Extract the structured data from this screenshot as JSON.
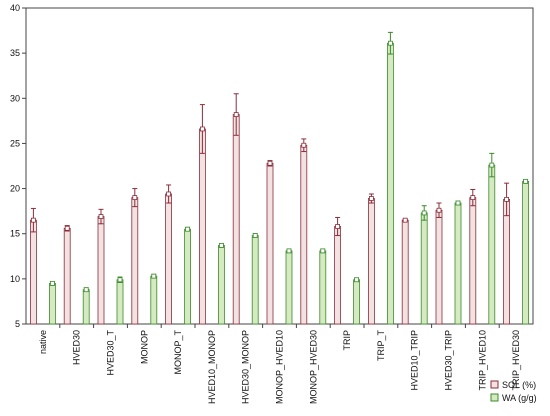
{
  "chart_data": {
    "type": "bar",
    "categories": [
      "native",
      "HVED30",
      "HVED30_T",
      "MONOP",
      "MONOP_T",
      "HVED10_MONOP",
      "HVED30_MONOP",
      "MONOP_HVED10",
      "MONOP_HVED30",
      "TRIP",
      "TRIP_T",
      "HVED10_TRIP",
      "HVED30_TRIP",
      "TRIP_HVED10",
      "TRIP_HVED30"
    ],
    "ylim": [
      5,
      40
    ],
    "yticks": [
      5,
      10,
      15,
      20,
      25,
      30,
      35,
      40
    ],
    "grid": false,
    "legend_position": "bottom-right",
    "series": [
      {
        "name": "SOL (%)",
        "color": "#8b2d3a",
        "fill": "#f2e2e2",
        "values": [
          16.5,
          15.6,
          16.9,
          19.0,
          19.4,
          26.6,
          28.2,
          22.8,
          24.8,
          15.8,
          18.9,
          16.5,
          17.6,
          19.0,
          18.8
        ],
        "errors": [
          1.3,
          0.3,
          0.8,
          1.0,
          1.0,
          2.7,
          2.3,
          0.3,
          0.7,
          1.0,
          0.5,
          0.1,
          0.8,
          0.9,
          1.8
        ]
      },
      {
        "name": "WA (g/g)",
        "color": "#3a8a2a",
        "fill": "#d6eac2",
        "values": [
          9.5,
          8.8,
          9.9,
          10.3,
          15.5,
          13.7,
          14.8,
          13.1,
          13.1,
          9.9,
          36.1,
          17.3,
          18.4,
          22.6,
          20.8
        ],
        "errors": [
          0.2,
          0.2,
          0.3,
          0.2,
          0.2,
          0.2,
          0.2,
          0.2,
          0.2,
          0.2,
          1.2,
          0.8,
          0.2,
          1.3,
          0.2
        ]
      }
    ]
  }
}
